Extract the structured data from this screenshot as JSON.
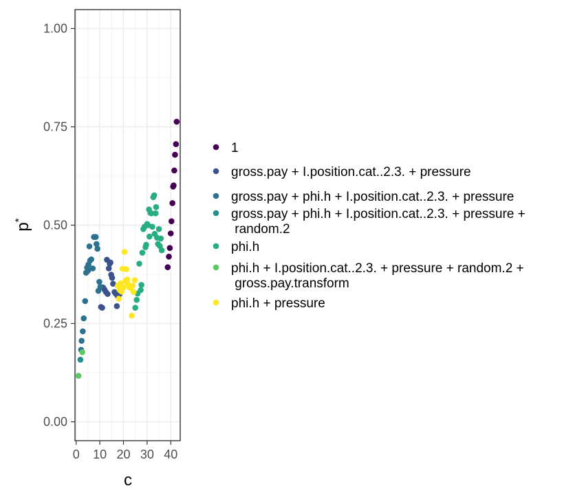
{
  "chart_data": {
    "type": "scatter",
    "xlabel": "c",
    "ylabel": "p",
    "ylabel_superscript": "*",
    "xlim": [
      -0.5,
      44
    ],
    "ylim": [
      -0.048,
      1.048
    ],
    "x_ticks": [
      0,
      10,
      20,
      30,
      40
    ],
    "x_tick_labels": [
      "0",
      "10",
      "20",
      "30",
      "40"
    ],
    "y_ticks": [
      0,
      0.25,
      0.5,
      0.75,
      1
    ],
    "y_tick_labels": [
      "0.00",
      "0.25",
      "0.50",
      "0.75",
      "1.00"
    ],
    "grid": true,
    "legend_position": "right",
    "series": [
      {
        "name": "1",
        "color": "#440154",
        "points": [
          [
            42.5,
            0.763
          ],
          [
            42.2,
            0.706
          ],
          [
            41.8,
            0.679
          ],
          [
            41.5,
            0.639
          ],
          [
            41.2,
            0.601
          ],
          [
            41.0,
            0.598
          ],
          [
            40.7,
            0.556
          ],
          [
            40.3,
            0.51
          ],
          [
            40.0,
            0.479
          ],
          [
            39.6,
            0.442
          ],
          [
            39.2,
            0.42
          ],
          [
            38.7,
            0.393
          ]
        ]
      },
      {
        "name": "gross.pay + I.position.cat..2.3. + pressure",
        "color": "#3b528b",
        "points": [
          [
            10.5,
            0.292
          ],
          [
            11.0,
            0.29
          ],
          [
            11.3,
            0.342
          ],
          [
            12.0,
            0.336
          ],
          [
            12.6,
            0.33
          ],
          [
            13.0,
            0.412
          ],
          [
            13.3,
            0.325
          ],
          [
            13.8,
            0.39
          ],
          [
            14.2,
            0.402
          ],
          [
            14.5,
            0.405
          ],
          [
            14.8,
            0.374
          ],
          [
            15.2,
            0.366
          ],
          [
            15.6,
            0.351
          ],
          [
            16.2,
            0.33
          ],
          [
            16.7,
            0.326
          ],
          [
            17.2,
            0.294
          ],
          [
            17.5,
            0.32
          ],
          [
            18.3,
            0.324
          ]
        ]
      },
      {
        "name": "gross.pay + phi.h + I.position.cat..2.3. + pressure",
        "color": "#2c728e",
        "points": [
          [
            2.1,
            0.183
          ],
          [
            2.3,
            0.206
          ],
          [
            2.8,
            0.23
          ],
          [
            3.2,
            0.263
          ],
          [
            3.8,
            0.307
          ],
          [
            4.2,
            0.379
          ],
          [
            4.6,
            0.392
          ],
          [
            5.0,
            0.384
          ],
          [
            5.2,
            0.4
          ],
          [
            5.6,
            0.446
          ],
          [
            5.9,
            0.41
          ],
          [
            6.4,
            0.413
          ],
          [
            7.0,
            0.39
          ],
          [
            7.5,
            0.47
          ],
          [
            8.3,
            0.47
          ],
          [
            8.6,
            0.452
          ],
          [
            9.0,
            0.44
          ],
          [
            9.4,
            0.333
          ],
          [
            9.8,
            0.356
          ],
          [
            10.2,
            0.343
          ]
        ]
      },
      {
        "name": "gross.pay + phi.h + I.position.cat..2.3. + pressure + random.2",
        "color": "#21908c",
        "points": [
          [
            1.8,
            0.158
          ]
        ]
      },
      {
        "name": "phi.h",
        "color": "#27ad81",
        "points": [
          [
            25.0,
            0.29
          ],
          [
            25.6,
            0.31
          ],
          [
            26.0,
            0.326
          ],
          [
            26.7,
            0.402
          ],
          [
            27.3,
            0.335
          ],
          [
            27.6,
            0.348
          ],
          [
            28.0,
            0.43
          ],
          [
            28.4,
            0.49
          ],
          [
            28.9,
            0.496
          ],
          [
            29.3,
            0.444
          ],
          [
            29.6,
            0.45
          ],
          [
            30.0,
            0.503
          ],
          [
            30.4,
            0.5
          ],
          [
            30.8,
            0.54
          ],
          [
            31.0,
            0.471
          ],
          [
            31.4,
            0.531
          ],
          [
            31.8,
            0.53
          ],
          [
            32.2,
            0.496
          ],
          [
            32.6,
            0.571
          ],
          [
            33.0,
            0.576
          ],
          [
            33.2,
            0.478
          ],
          [
            33.6,
            0.53
          ],
          [
            33.8,
            0.546
          ],
          [
            34.2,
            0.468
          ],
          [
            34.6,
            0.452
          ],
          [
            35.0,
            0.49
          ],
          [
            35.4,
            0.447
          ],
          [
            35.8,
            0.466
          ],
          [
            36.2,
            0.436
          ]
        ]
      },
      {
        "name": "phi.h + I.position.cat..2.3. + pressure + random.2 + gross.pay.transform",
        "color": "#5dc863",
        "points": [
          [
            1.0,
            0.117
          ],
          [
            2.6,
            0.177
          ]
        ]
      },
      {
        "name": "phi.h + pressure",
        "color": "#fde725",
        "points": [
          [
            17.6,
            0.346
          ],
          [
            18.0,
            0.313
          ],
          [
            18.4,
            0.335
          ],
          [
            18.8,
            0.352
          ],
          [
            19.2,
            0.331
          ],
          [
            19.6,
            0.389
          ],
          [
            20.0,
            0.342
          ],
          [
            20.4,
            0.432
          ],
          [
            20.8,
            0.358
          ],
          [
            21.2,
            0.388
          ],
          [
            21.6,
            0.362
          ],
          [
            22.0,
            0.35
          ],
          [
            22.5,
            0.342
          ],
          [
            23.0,
            0.34
          ],
          [
            23.5,
            0.27
          ],
          [
            23.8,
            0.346
          ],
          [
            24.3,
            0.33
          ],
          [
            24.8,
            0.36
          ]
        ]
      }
    ]
  },
  "legend": {
    "items": [
      {
        "lines": [
          "1"
        ]
      },
      {
        "lines": [
          "gross.pay + I.position.cat..2.3. + pressure"
        ]
      },
      {
        "lines": [
          "gross.pay + phi.h + I.position.cat..2.3. + pressure"
        ]
      },
      {
        "lines": [
          "gross.pay + phi.h + I.position.cat..2.3. + pressure +",
          " random.2"
        ]
      },
      {
        "lines": [
          "phi.h"
        ]
      },
      {
        "lines": [
          "phi.h + I.position.cat..2.3. + pressure + random.2 +",
          " gross.pay.transform"
        ]
      },
      {
        "lines": [
          "phi.h + pressure"
        ]
      }
    ]
  }
}
